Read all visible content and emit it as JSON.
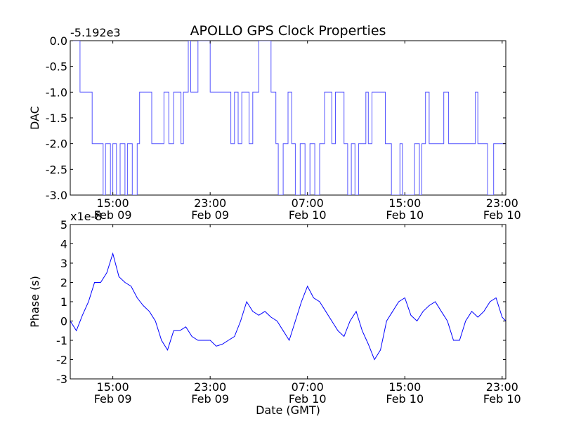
{
  "figure": {
    "title": "APOLLO GPS Clock Properties",
    "xlabel": "Date (GMT)"
  },
  "chart_data": [
    {
      "type": "line",
      "name": "dac-panel",
      "ylabel": "DAC",
      "offset_label": "-5.192e3",
      "ylim": [
        -3.0,
        0.0
      ],
      "yticks": [
        0.0,
        -0.5,
        -1.0,
        -1.5,
        -2.0,
        -2.5,
        -3.0
      ],
      "ytick_labels": [
        "0.0",
        "-0.5",
        "-1.0",
        "-1.5",
        "-2.0",
        "-2.5",
        "-3.0"
      ],
      "xlim_hours": [
        11.5,
        47.3
      ],
      "xticks": [
        {
          "hour": 15,
          "time": "15:00",
          "date": "Feb 09"
        },
        {
          "hour": 23,
          "time": "23:00",
          "date": "Feb 09"
        },
        {
          "hour": 31,
          "time": "07:00",
          "date": "Feb 10"
        },
        {
          "hour": 39,
          "time": "15:00",
          "date": "Feb 10"
        },
        {
          "hour": 47,
          "time": "23:00",
          "date": "Feb 10"
        }
      ],
      "line_color": "#5555ff",
      "series": [
        {
          "x": [
            11.5,
            12.3,
            12.3,
            13.3,
            13.3,
            14.2,
            14.2,
            14.4,
            14.4,
            14.8,
            14.8,
            15.0,
            15.0,
            15.3,
            15.3,
            15.6,
            15.6,
            16.0,
            16.0,
            16.2,
            16.2,
            16.6,
            16.6,
            17.0,
            17.0,
            17.2,
            17.2,
            18.2,
            18.2,
            19.2,
            19.2,
            19.6,
            19.6,
            20.0,
            20.0,
            20.6,
            20.6,
            20.8,
            20.8,
            21.2,
            21.2,
            21.4,
            21.4,
            22.0,
            22.0,
            23.0,
            23.0,
            24.7,
            24.7,
            25.0,
            25.0,
            25.3,
            25.3,
            25.6,
            25.6,
            26.2,
            26.2,
            26.5,
            26.5,
            27.0,
            27.0,
            28.0,
            28.0,
            28.4,
            28.4,
            28.6,
            28.6,
            29.0,
            29.0,
            29.4,
            29.4,
            29.7,
            29.7,
            30.0,
            30.0,
            30.4,
            30.4,
            30.8,
            30.8,
            31.2,
            31.2,
            31.6,
            31.6,
            32.0,
            32.0,
            32.4,
            32.4,
            33.0,
            33.0,
            33.3,
            33.3,
            34.0,
            34.0,
            34.3,
            34.3,
            34.6,
            34.6,
            34.9,
            34.9,
            35.2,
            35.2,
            35.8,
            35.8,
            36.0,
            36.0,
            36.3,
            36.3,
            37.4,
            37.4,
            37.9,
            37.9,
            38.6,
            38.6,
            38.8,
            38.8,
            39.8,
            39.8,
            40.2,
            40.2,
            40.4,
            40.4,
            40.7,
            40.7,
            41.0,
            41.0,
            42.2,
            42.2,
            42.6,
            42.6,
            44.8,
            44.8,
            45.0,
            45.0,
            45.8,
            45.8,
            46.3,
            46.3,
            47.3
          ],
          "y": [
            0.0,
            0.0,
            -1.0,
            -1.0,
            -2.0,
            -2.0,
            -3.0,
            -3.0,
            -2.0,
            -2.0,
            -3.0,
            -3.0,
            -2.0,
            -2.0,
            -3.0,
            -3.0,
            -2.0,
            -2.0,
            -3.0,
            -3.0,
            -2.0,
            -2.0,
            -3.0,
            -3.0,
            -2.0,
            -2.0,
            -1.0,
            -1.0,
            -2.0,
            -2.0,
            -1.0,
            -1.0,
            -2.0,
            -2.0,
            -1.0,
            -1.0,
            -2.0,
            -2.0,
            -1.0,
            -1.0,
            0.0,
            0.0,
            -1.0,
            -1.0,
            0.0,
            0.0,
            -1.0,
            -1.0,
            -2.0,
            -2.0,
            -1.0,
            -1.0,
            -2.0,
            -2.0,
            -1.0,
            -1.0,
            -2.0,
            -2.0,
            -1.0,
            -1.0,
            0.0,
            0.0,
            -1.0,
            -1.0,
            -2.0,
            -2.0,
            -3.0,
            -3.0,
            -2.0,
            -2.0,
            -1.0,
            -1.0,
            -2.0,
            -2.0,
            -3.0,
            -3.0,
            -2.0,
            -2.0,
            -3.0,
            -3.0,
            -2.0,
            -2.0,
            -3.0,
            -3.0,
            -2.0,
            -2.0,
            -1.0,
            -1.0,
            -2.0,
            -2.0,
            -1.0,
            -1.0,
            -2.0,
            -2.0,
            -3.0,
            -3.0,
            -2.0,
            -2.0,
            -3.0,
            -3.0,
            -2.0,
            -2.0,
            -1.0,
            -1.0,
            -2.0,
            -2.0,
            -1.0,
            -1.0,
            -2.0,
            -2.0,
            -3.0,
            -3.0,
            -2.0,
            -2.0,
            -3.0,
            -3.0,
            -2.0,
            -2.0,
            -3.0,
            -3.0,
            -2.0,
            -2.0,
            -1.0,
            -1.0,
            -2.0,
            -2.0,
            -1.0,
            -1.0,
            -2.0,
            -2.0,
            -1.0,
            -1.0,
            -2.0,
            -2.0,
            -3.0,
            -3.0,
            -2.0,
            -2.0
          ]
        }
      ]
    },
    {
      "type": "line",
      "name": "phase-panel",
      "ylabel": "Phase (s)",
      "offset_label": "x1e-8",
      "ylim": [
        -3,
        5
      ],
      "yticks": [
        5,
        4,
        3,
        2,
        1,
        0,
        -1,
        -2,
        -3
      ],
      "ytick_labels": [
        "5",
        "4",
        "3",
        "2",
        "1",
        "0",
        "-1",
        "-2",
        "-3"
      ],
      "xlim_hours": [
        11.5,
        47.3
      ],
      "xticks": [
        {
          "hour": 15,
          "time": "15:00",
          "date": "Feb 09"
        },
        {
          "hour": 23,
          "time": "23:00",
          "date": "Feb 09"
        },
        {
          "hour": 31,
          "time": "07:00",
          "date": "Feb 10"
        },
        {
          "hour": 39,
          "time": "15:00",
          "date": "Feb 10"
        },
        {
          "hour": 47,
          "time": "23:00",
          "date": "Feb 10"
        }
      ],
      "line_color": "#0000ff",
      "series": [
        {
          "x": [
            11.5,
            12.0,
            12.5,
            13.0,
            13.5,
            14.0,
            14.5,
            15.0,
            15.5,
            16.0,
            16.5,
            17.0,
            17.5,
            18.0,
            18.5,
            19.0,
            19.5,
            20.0,
            20.5,
            21.0,
            21.5,
            22.0,
            22.5,
            23.0,
            23.5,
            24.0,
            24.5,
            25.0,
            25.5,
            26.0,
            26.5,
            27.0,
            27.5,
            28.0,
            28.5,
            29.0,
            29.5,
            30.0,
            30.5,
            31.0,
            31.5,
            32.0,
            32.5,
            33.0,
            33.5,
            34.0,
            34.5,
            35.0,
            35.5,
            36.0,
            36.5,
            37.0,
            37.5,
            38.0,
            38.5,
            39.0,
            39.5,
            40.0,
            40.5,
            41.0,
            41.5,
            42.0,
            42.5,
            43.0,
            43.5,
            44.0,
            44.5,
            45.0,
            45.5,
            46.0,
            46.5,
            47.0,
            47.3
          ],
          "y": [
            0.0,
            -0.5,
            0.3,
            1.0,
            2.0,
            2.0,
            2.5,
            3.5,
            2.3,
            2.0,
            1.8,
            1.2,
            0.8,
            0.5,
            0.0,
            -1.0,
            -1.5,
            -0.5,
            -0.5,
            -0.3,
            -0.8,
            -1.0,
            -1.0,
            -1.0,
            -1.3,
            -1.2,
            -1.0,
            -0.8,
            0.0,
            1.0,
            0.5,
            0.3,
            0.5,
            0.2,
            0.0,
            -0.5,
            -1.0,
            0.0,
            1.0,
            1.8,
            1.2,
            1.0,
            0.5,
            0.0,
            -0.5,
            -0.8,
            0.0,
            0.5,
            -0.5,
            -1.2,
            -2.0,
            -1.5,
            0.0,
            0.5,
            1.0,
            1.2,
            0.3,
            0.0,
            0.5,
            0.8,
            1.0,
            0.5,
            0.0,
            -1.0,
            -1.0,
            0.0,
            0.5,
            0.2,
            0.5,
            1.0,
            1.2,
            0.2,
            0.0
          ]
        }
      ]
    }
  ]
}
